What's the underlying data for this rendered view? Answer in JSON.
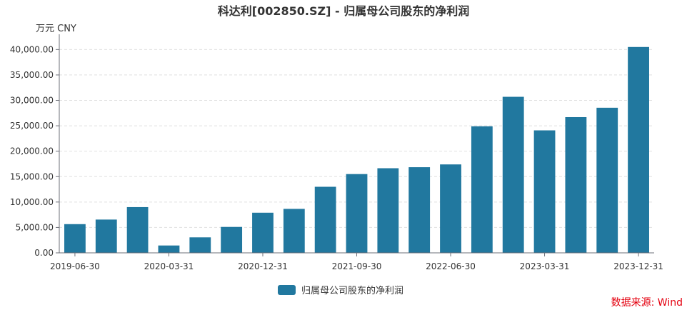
{
  "title": "科达利[002850.SZ] - 归属母公司股东的净利润",
  "unit_label": "万元  CNY",
  "source": "数据来源: Wind",
  "colors": {
    "bar": "#21789f",
    "axis": "#6e7079",
    "grid": "#e0e0e0",
    "source": "#e4000f"
  },
  "chart_data": {
    "type": "bar",
    "title": "科达利[002850.SZ] - 归属母公司股东的净利润",
    "ylabel": "万元  CNY",
    "ylim": [
      0,
      43000
    ],
    "yticks": [
      0,
      5000,
      10000,
      15000,
      20000,
      25000,
      30000,
      35000,
      40000
    ],
    "ytick_labels": [
      "0.00",
      "5,000.00",
      "10,000.00",
      "15,000.00",
      "20,000.00",
      "25,000.00",
      "30,000.00",
      "35,000.00",
      "40,000.00"
    ],
    "categories": [
      "2019-06-30",
      "2019-09-30",
      "2019-12-31",
      "2020-03-31",
      "2020-06-30",
      "2020-09-30",
      "2020-12-31",
      "2021-03-31",
      "2021-06-30",
      "2021-09-30",
      "2021-12-31",
      "2022-03-31",
      "2022-06-30",
      "2022-09-30",
      "2022-12-31",
      "2023-03-31",
      "2023-06-30",
      "2023-09-30",
      "2023-12-31"
    ],
    "xtick_labels_shown": [
      "2019-06-30",
      "2020-03-31",
      "2020-12-31",
      "2021-09-30",
      "2022-06-30",
      "2023-03-31",
      "2023-12-31"
    ],
    "series": [
      {
        "name": "归属母公司股东的净利润",
        "values": [
          5650,
          6550,
          9000,
          1450,
          3050,
          5100,
          7900,
          8650,
          13000,
          15500,
          16650,
          16850,
          17400,
          24900,
          30700,
          24100,
          26700,
          28550,
          40500
        ]
      }
    ],
    "legend_position": "bottom-center",
    "grid": true
  }
}
